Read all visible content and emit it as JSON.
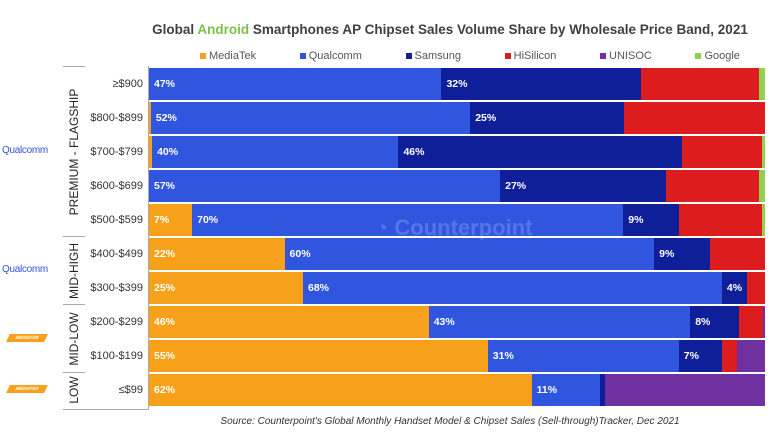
{
  "chart_data": {
    "type": "bar",
    "orientation": "horizontal",
    "stacked": "100%",
    "title_parts": [
      "Global ",
      "Android",
      " Smartphones AP Chipset Sales Volume Share by Wholesale Price Band, 2021"
    ],
    "legend_position": "top",
    "categories": [
      "≥$900",
      "$800-$899",
      "$700-$799",
      "$600-$699",
      "$500-$599",
      "$400-$499",
      "$300-$399",
      "$200-$299",
      "$100-$199",
      "≤$99"
    ],
    "groups": [
      {
        "name": "PREMIUM - FLAGSHIP",
        "rows": 5,
        "logo": "Qualcomm"
      },
      {
        "name": "MID-HIGH",
        "rows": 2,
        "logo": "Qualcomm"
      },
      {
        "name": "MID-LOW",
        "rows": 2,
        "logo": "MEDIATEK"
      },
      {
        "name": "LOW",
        "rows": 1,
        "logo": "MEDIATEK"
      }
    ],
    "series": [
      {
        "name": "MediaTek",
        "color": "#F7A11A",
        "values": [
          0,
          0.3,
          0.5,
          0,
          7,
          22,
          25,
          46,
          55,
          62
        ],
        "labels": [
          "",
          "",
          "",
          "",
          "7%",
          "22%",
          "25%",
          "46%",
          "55%",
          "62%"
        ]
      },
      {
        "name": "Qualcomm",
        "color": "#3056E0",
        "values": [
          47,
          52,
          40,
          57,
          70,
          60,
          68,
          43,
          31,
          11
        ],
        "labels": [
          "47%",
          "52%",
          "40%",
          "57%",
          "70%",
          "60%",
          "68%",
          "43%",
          "31%",
          "11%"
        ]
      },
      {
        "name": "Samsung",
        "color": "#0F1E99",
        "values": [
          32,
          25,
          46,
          27,
          9,
          9,
          4,
          8,
          7,
          0.8
        ],
        "labels": [
          "32%",
          "25%",
          "46%",
          "27%",
          "9%",
          "9%",
          "4%",
          "8%",
          "7%",
          ""
        ]
      },
      {
        "name": "HiSilicon",
        "color": "#DD1C1D",
        "values": [
          19,
          23,
          13,
          15,
          13.5,
          9,
          3,
          4,
          2.5,
          0
        ],
        "labels": [
          "",
          "",
          "",
          "",
          "",
          "",
          "",
          "",
          "",
          ""
        ]
      },
      {
        "name": "UNISOC",
        "color": "#7030A0",
        "values": [
          0,
          0,
          0,
          0,
          0,
          0,
          0,
          0.3,
          4.5,
          26
        ],
        "labels": [
          "",
          "",
          "",
          "",
          "",
          "",
          "",
          "",
          "",
          ""
        ]
      },
      {
        "name": "Google",
        "color": "#92D050",
        "values": [
          1,
          0,
          0.5,
          1,
          0.5,
          0,
          0,
          0,
          0,
          0
        ],
        "labels": [
          "",
          "",
          "",
          "",
          "",
          "",
          "",
          "",
          "",
          ""
        ]
      }
    ],
    "xlim": [
      0,
      100
    ],
    "grid": false
  },
  "watermark": "Counterpoint Technology Market Research",
  "source": "Source: Counterpoint's Global Monthly Handset Model & Chipset Sales (Sell-through)Tracker, Dec 2021"
}
